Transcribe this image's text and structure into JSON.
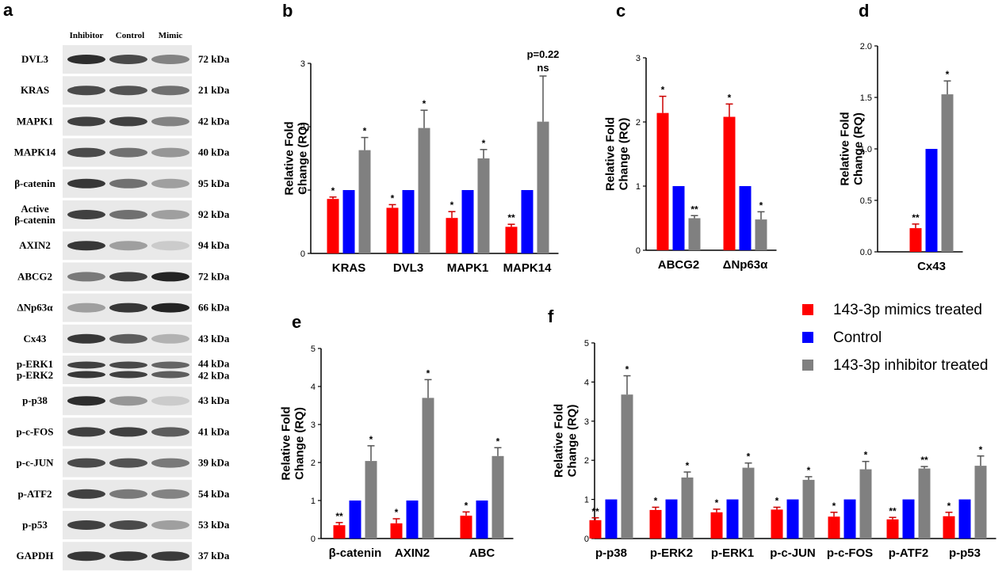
{
  "colors": {
    "mimic": "#ff0000",
    "control": "#0000ff",
    "inhibitor": "#808080"
  },
  "legend": {
    "placement": "right",
    "entries": [
      {
        "label": "143-3p mimics treated",
        "color": "#ff0000"
      },
      {
        "label": "Control",
        "color": "#0000ff"
      },
      {
        "label": "143-3p inhibitor treated",
        "color": "#808080"
      }
    ]
  },
  "western_blot": {
    "panel_letter": "a",
    "lane_labels": [
      "Inhibitor",
      "Control",
      "Mimic"
    ],
    "rows": [
      {
        "protein": "DVL3",
        "kda": "72 kDa",
        "intensity": [
          0.95,
          0.8,
          0.5
        ]
      },
      {
        "protein": "KRAS",
        "kda": "21 kDa",
        "intensity": [
          0.8,
          0.75,
          0.6
        ]
      },
      {
        "protein": "MAPK1",
        "kda": "42 kDa",
        "intensity": [
          0.85,
          0.85,
          0.5
        ]
      },
      {
        "protein": "MAPK14",
        "kda": "40 kDa",
        "intensity": [
          0.8,
          0.6,
          0.4
        ]
      },
      {
        "protein": "β-catenin",
        "kda": "95 kDa",
        "intensity": [
          0.9,
          0.6,
          0.35
        ]
      },
      {
        "protein": "Active\nβ-catenin",
        "kda": "92 kDa",
        "intensity": [
          0.85,
          0.6,
          0.35
        ]
      },
      {
        "protein": "AXIN2",
        "kda": "94 kDa",
        "intensity": [
          0.9,
          0.35,
          0.12
        ]
      },
      {
        "protein": "ABCG2",
        "kda": "72 kDa",
        "intensity": [
          0.55,
          0.85,
          1.0
        ]
      },
      {
        "protein": "ΔNp63α",
        "kda": "66 kDa",
        "intensity": [
          0.35,
          0.9,
          1.0
        ]
      },
      {
        "protein": "Cx43",
        "kda": "43 kDa",
        "intensity": [
          0.9,
          0.7,
          0.25
        ]
      },
      {
        "protein": "p-ERK1\np-ERK2",
        "kda": "44 kDa\n42 kDa",
        "intensity": [
          0.9,
          0.85,
          0.7
        ],
        "double": true
      },
      {
        "protein": "p-p38",
        "kda": "43 kDa",
        "intensity": [
          0.95,
          0.4,
          0.12
        ]
      },
      {
        "protein": "p-c-FOS",
        "kda": "41 kDa",
        "intensity": [
          0.85,
          0.85,
          0.7
        ]
      },
      {
        "protein": "p-c-JUN",
        "kda": "39 kDa",
        "intensity": [
          0.8,
          0.75,
          0.55
        ]
      },
      {
        "protein": "p-ATF2",
        "kda": "54 kDa",
        "intensity": [
          0.85,
          0.55,
          0.5
        ]
      },
      {
        "protein": "p-p53",
        "kda": "53 kDa",
        "intensity": [
          0.85,
          0.8,
          0.35
        ]
      },
      {
        "protein": "GAPDH",
        "kda": "37 kDa",
        "intensity": [
          0.9,
          0.9,
          0.88
        ]
      }
    ]
  },
  "chart_data": [
    {
      "panel": "b",
      "type": "bar",
      "ylabel": "Relative Fold\nChange (RQ)",
      "ylim": [
        0,
        3
      ],
      "yticks": [
        "0",
        "1",
        "2",
        "3"
      ],
      "categories": [
        "KRAS",
        "DVL3",
        "MAPK1",
        "MAPK14"
      ],
      "values": [
        [
          0.86,
          1.0,
          1.63
        ],
        [
          0.72,
          1.0,
          1.98
        ],
        [
          0.56,
          1.0,
          1.5
        ],
        [
          0.42,
          1.0,
          2.08
        ]
      ],
      "errors": [
        [
          0.03,
          0,
          0.2
        ],
        [
          0.05,
          0,
          0.28
        ],
        [
          0.1,
          0,
          0.14
        ],
        [
          0.04,
          0,
          0.72
        ]
      ],
      "sig": [
        [
          "*",
          "",
          "*"
        ],
        [
          "*",
          "",
          "*"
        ],
        [
          "*",
          "",
          "*"
        ],
        [
          "**",
          "",
          "ns"
        ]
      ],
      "annotation": "p=0.22"
    },
    {
      "panel": "c",
      "type": "bar",
      "ylabel": "Relative Fold\nChange (RQ)",
      "ylim": [
        0,
        3
      ],
      "yticks": [
        "0",
        "1",
        "2",
        "3"
      ],
      "categories": [
        "ABCG2",
        "ΔNp63α"
      ],
      "values": [
        [
          2.14,
          1.0,
          0.5
        ],
        [
          2.08,
          1.0,
          0.48
        ]
      ],
      "errors": [
        [
          0.26,
          0,
          0.04
        ],
        [
          0.2,
          0,
          0.12
        ]
      ],
      "sig": [
        [
          "*",
          "",
          "**"
        ],
        [
          "*",
          "",
          "*"
        ]
      ]
    },
    {
      "panel": "d",
      "type": "bar",
      "ylabel": "Relative Fold\nChange (RQ)",
      "ylim": [
        0,
        2
      ],
      "yticks": [
        "0.0",
        "0.5",
        "1.0",
        "1.5",
        "2.0"
      ],
      "categories": [
        "Cx43"
      ],
      "values": [
        [
          0.23,
          1.0,
          1.53
        ]
      ],
      "errors": [
        [
          0.04,
          0,
          0.13
        ]
      ],
      "sig": [
        [
          "**",
          "",
          "*"
        ]
      ]
    },
    {
      "panel": "e",
      "type": "bar",
      "ylabel": "Relative Fold\nChange (RQ)",
      "ylim": [
        0,
        5
      ],
      "yticks": [
        "0",
        "1",
        "2",
        "3",
        "4",
        "5"
      ],
      "categories": [
        "β-catenin",
        "AXIN2",
        "ABC"
      ],
      "values": [
        [
          0.35,
          1.0,
          2.04
        ],
        [
          0.4,
          1.0,
          3.7
        ],
        [
          0.6,
          1.0,
          2.17
        ]
      ],
      "errors": [
        [
          0.07,
          0,
          0.4
        ],
        [
          0.12,
          0,
          0.48
        ],
        [
          0.1,
          0,
          0.22
        ]
      ],
      "sig": [
        [
          "**",
          "",
          "*"
        ],
        [
          "*",
          "",
          "*"
        ],
        [
          "*",
          "",
          "*"
        ]
      ]
    },
    {
      "panel": "f",
      "type": "bar",
      "ylabel": "Relative Fold\nChange (RQ)",
      "ylim": [
        0,
        5
      ],
      "yticks": [
        "0",
        "1",
        "2",
        "3",
        "4",
        "5"
      ],
      "categories": [
        "p-p38",
        "p-ERK2",
        "p-ERK1",
        "p-c-JUN",
        "p-c-FOS",
        "p-ATF2",
        "p-p53"
      ],
      "values": [
        [
          0.47,
          1.0,
          3.68
        ],
        [
          0.73,
          1.0,
          1.56
        ],
        [
          0.67,
          1.0,
          1.81
        ],
        [
          0.74,
          1.0,
          1.5
        ],
        [
          0.56,
          1.0,
          1.77
        ],
        [
          0.49,
          1.0,
          1.79
        ],
        [
          0.57,
          1.0,
          1.86
        ]
      ],
      "errors": [
        [
          0.06,
          0,
          0.48
        ],
        [
          0.07,
          0,
          0.14
        ],
        [
          0.08,
          0,
          0.12
        ],
        [
          0.06,
          0,
          0.08
        ],
        [
          0.11,
          0,
          0.2
        ],
        [
          0.05,
          0,
          0.05
        ],
        [
          0.1,
          0,
          0.25
        ]
      ],
      "sig": [
        [
          "**",
          "",
          "*"
        ],
        [
          "*",
          "",
          "*"
        ],
        [
          "*",
          "",
          "*"
        ],
        [
          "*",
          "",
          "*"
        ],
        [
          "*",
          "",
          "*"
        ],
        [
          "**",
          "",
          "**"
        ],
        [
          "*",
          "",
          "*"
        ]
      ]
    }
  ]
}
